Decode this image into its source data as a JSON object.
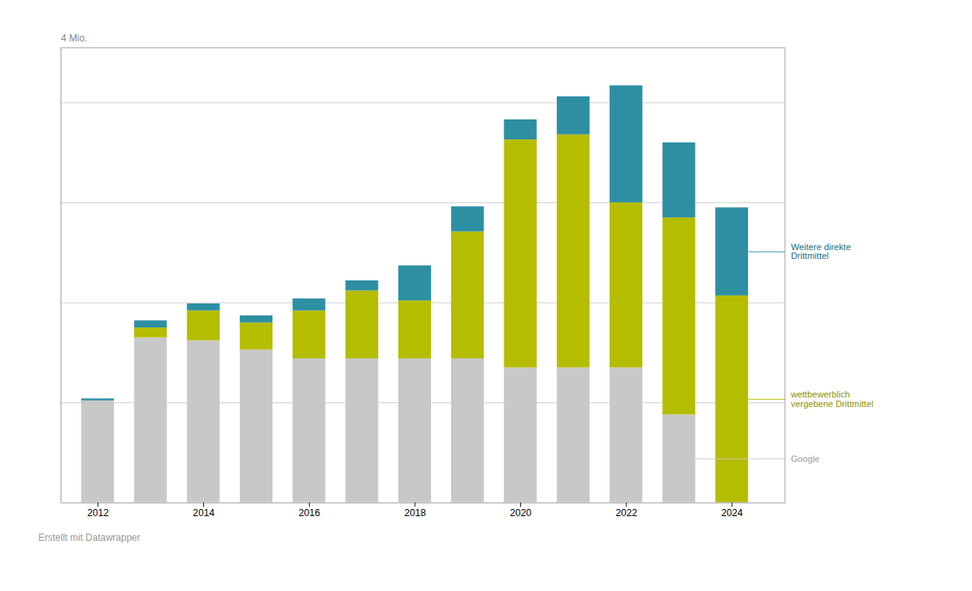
{
  "chart_data": {
    "type": "bar",
    "stacked": true,
    "x": [
      2012,
      2013,
      2014,
      2015,
      2016,
      2017,
      2018,
      2019,
      2020,
      2021,
      2022,
      2023,
      2024
    ],
    "series": [
      {
        "name": "Google",
        "color": "#c8c8c8",
        "values": [
          1.02,
          1.65,
          1.62,
          1.53,
          1.44,
          1.44,
          1.44,
          1.44,
          1.35,
          1.35,
          1.35,
          0.88,
          0.0
        ]
      },
      {
        "name": "wettbewerblich\nvergebene Drittmittel",
        "color": "#b5bd00",
        "values": [
          0.0,
          0.1,
          0.3,
          0.27,
          0.48,
          0.68,
          0.58,
          1.27,
          2.28,
          2.33,
          1.65,
          1.97,
          2.07
        ]
      },
      {
        "name": "Weitere direkte\nDrittmittel",
        "color": "#2e8fa3",
        "values": [
          0.02,
          0.07,
          0.07,
          0.07,
          0.12,
          0.1,
          0.35,
          0.25,
          0.2,
          0.38,
          1.17,
          0.75,
          0.88
        ]
      }
    ],
    "xlim": [
      2011.3,
      2025.0
    ],
    "xticks": [
      2012,
      2014,
      2016,
      2018,
      2020,
      2022,
      2024
    ],
    "ylim": [
      0,
      4.55
    ],
    "yticks": [
      1,
      2,
      3,
      4
    ],
    "ylabel": "4 Mio.",
    "caption": "Erstellt mit Datawrapper",
    "grid": true,
    "tick_labels": "x",
    "legend": "right"
  }
}
